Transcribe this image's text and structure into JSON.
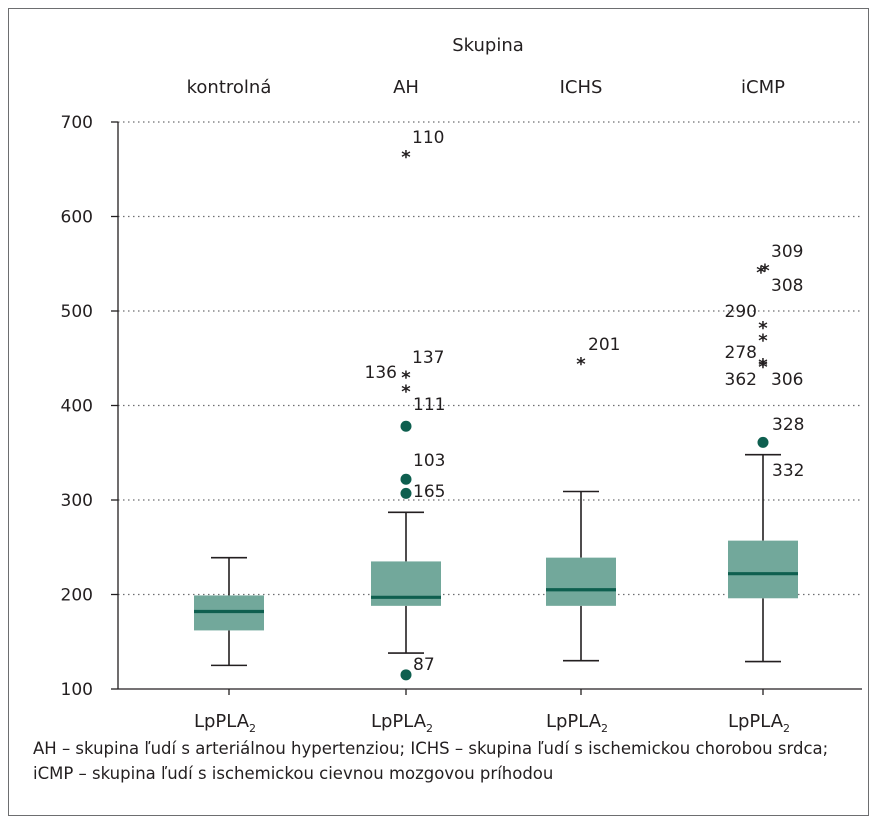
{
  "chart_data": {
    "type": "boxplot",
    "title": "Skupina",
    "categories": [
      "kontrolná",
      "AH",
      "ICHS",
      "iCMP"
    ],
    "x_tick_label_main": "LpPLA",
    "x_tick_label_sub": "2",
    "ylim": [
      100,
      700
    ],
    "yticks": [
      100,
      200,
      300,
      400,
      500,
      600,
      700
    ],
    "grid": true,
    "boxes": [
      {
        "group": "kontrolná",
        "whisker_low": 125,
        "q1": 162,
        "median": 182,
        "q3": 199,
        "whisker_high": 239
      },
      {
        "group": "AH",
        "whisker_low": 138,
        "q1": 188,
        "median": 197,
        "q3": 235,
        "whisker_high": 287
      },
      {
        "group": "ICHS",
        "whisker_low": 130,
        "q1": 188,
        "median": 205,
        "q3": 239,
        "whisker_high": 309
      },
      {
        "group": "iCMP",
        "whisker_low": 129,
        "q1": 196,
        "median": 222,
        "q3": 257,
        "whisker_high": 348
      }
    ],
    "outliers": [
      {
        "group": "AH",
        "value": 665,
        "marker": "star",
        "label": "110"
      },
      {
        "group": "AH",
        "value": 432,
        "marker": "star",
        "label": "137"
      },
      {
        "group": "AH",
        "value": 417,
        "marker": "star",
        "label": "136"
      },
      {
        "group": "AH",
        "value": 378,
        "marker": "circle",
        "label": "111"
      },
      {
        "group": "AH",
        "value": 322,
        "marker": "circle",
        "label": "103"
      },
      {
        "group": "AH",
        "value": 307,
        "marker": "circle",
        "label": "165"
      },
      {
        "group": "AH",
        "value": 115,
        "marker": "circle",
        "label": "87"
      },
      {
        "group": "ICHS",
        "value": 446,
        "marker": "star",
        "label": "201"
      },
      {
        "group": "iCMP",
        "value": 545,
        "marker": "star",
        "label": "309"
      },
      {
        "group": "iCMP",
        "value": 543,
        "marker": "star",
        "label": "308"
      },
      {
        "group": "iCMP",
        "value": 484,
        "marker": "star",
        "label": "290"
      },
      {
        "group": "iCMP",
        "value": 471,
        "marker": "star",
        "label": "278"
      },
      {
        "group": "iCMP",
        "value": 445,
        "marker": "star",
        "label": "362"
      },
      {
        "group": "iCMP",
        "value": 443,
        "marker": "star",
        "label": "306"
      },
      {
        "group": "iCMP",
        "value": 361,
        "marker": "circle",
        "label": "328"
      },
      {
        "group": "iCMP",
        "value": 348,
        "marker": "none",
        "label": "332"
      }
    ],
    "colors": {
      "box": "#72a89b",
      "median": "#0e5f4f",
      "marker": "#0e5f4f",
      "grid": "#6d6e70"
    }
  },
  "caption": "AH – skupina ľudí s arteriálnou hypertenziou;  ICHS – skupina ľudí s ischemickou chorobou srdca; iCMP – skupina ľudí s ischemickou cievnou mozgovou príhodou"
}
